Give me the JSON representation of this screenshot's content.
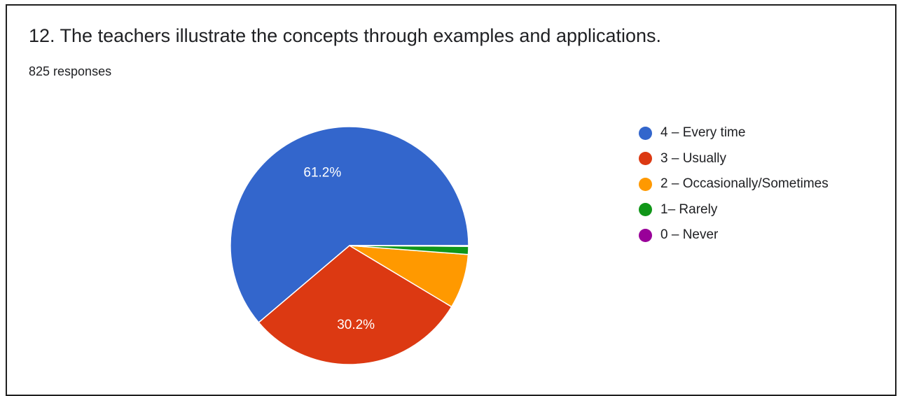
{
  "question": {
    "title": "12. The teachers illustrate the concepts through examples and applications.",
    "responses": "825 responses"
  },
  "chart_data": {
    "type": "pie",
    "categories": [
      "4 – Every time",
      "3 – Usually",
      "2 – Occasionally/Sometimes",
      "1– Rarely",
      "0 – Never"
    ],
    "values": [
      61.2,
      30.2,
      7.4,
      1.1,
      0.1
    ],
    "colors": [
      "#3366cc",
      "#dc3912",
      "#ff9900",
      "#109618",
      "#990099"
    ],
    "data_labels": [
      "61.2%",
      "30.2%",
      "",
      "",
      ""
    ],
    "legend_position": "right",
    "start_direction": "east",
    "direction": "counter-clockwise"
  }
}
